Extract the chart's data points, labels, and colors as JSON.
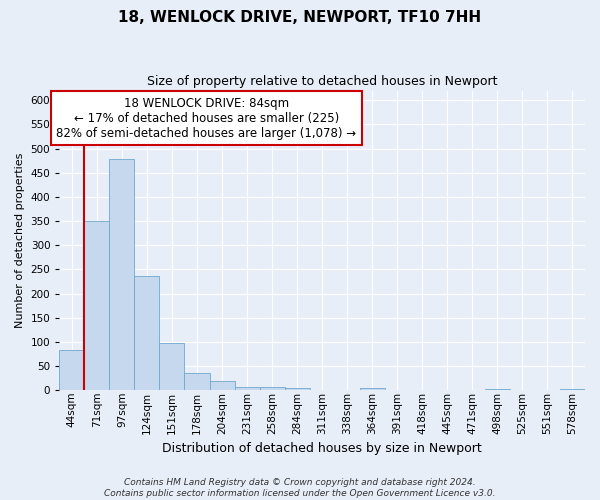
{
  "title": "18, WENLOCK DRIVE, NEWPORT, TF10 7HH",
  "subtitle": "Size of property relative to detached houses in Newport",
  "xlabel": "Distribution of detached houses by size in Newport",
  "ylabel": "Number of detached properties",
  "categories": [
    "44sqm",
    "71sqm",
    "97sqm",
    "124sqm",
    "151sqm",
    "178sqm",
    "204sqm",
    "231sqm",
    "258sqm",
    "284sqm",
    "311sqm",
    "338sqm",
    "364sqm",
    "391sqm",
    "418sqm",
    "445sqm",
    "471sqm",
    "498sqm",
    "525sqm",
    "551sqm",
    "578sqm"
  ],
  "values": [
    83,
    350,
    478,
    236,
    97,
    35,
    18,
    7,
    7,
    5,
    0,
    0,
    5,
    0,
    0,
    0,
    0,
    3,
    0,
    0,
    3
  ],
  "bar_color": "#c5d8ed",
  "bar_edge_color": "#6fa8d0",
  "marker_line_color": "#cc0000",
  "ylim": [
    0,
    620
  ],
  "yticks": [
    0,
    50,
    100,
    150,
    200,
    250,
    300,
    350,
    400,
    450,
    500,
    550,
    600
  ],
  "annotation_title": "18 WENLOCK DRIVE: 84sqm",
  "annotation_line1": "← 17% of detached houses are smaller (225)",
  "annotation_line2": "82% of semi-detached houses are larger (1,078) →",
  "annotation_box_color": "#ffffff",
  "annotation_box_edge": "#cc0000",
  "footer_line1": "Contains HM Land Registry data © Crown copyright and database right 2024.",
  "footer_line2": "Contains public sector information licensed under the Open Government Licence v3.0.",
  "bg_color": "#e8eef8",
  "grid_color": "#ffffff",
  "title_fontsize": 11,
  "subtitle_fontsize": 9,
  "ylabel_fontsize": 8,
  "xlabel_fontsize": 9,
  "tick_fontsize": 7.5,
  "ann_fontsize": 8.5,
  "footer_fontsize": 6.5
}
